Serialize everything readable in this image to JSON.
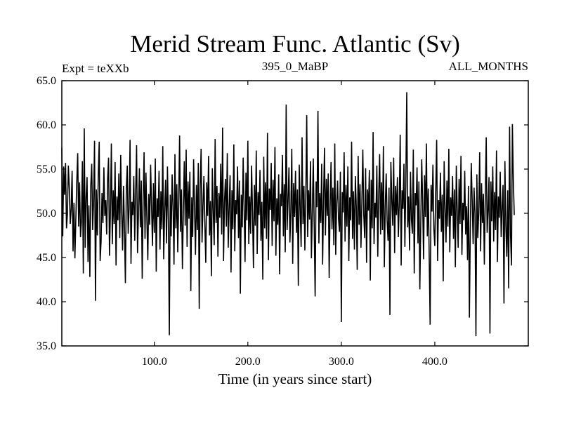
{
  "chart_data": {
    "type": "line",
    "title": "Merid Stream Func. Atlantic (Sv)",
    "left_note": "Expt = teXXb",
    "center_note": "395_0_MaBP",
    "right_note": "ALL_MONTHS",
    "xlabel": "Time (in years since start)",
    "ylabel": "",
    "xlim": [
      1,
      500
    ],
    "ylim": [
      35,
      65
    ],
    "x_ticks": [
      100,
      200,
      300,
      400
    ],
    "x_tick_labels": [
      "100.0",
      "200.0",
      "300.0",
      "400.0"
    ],
    "y_ticks": [
      35,
      40,
      45,
      50,
      55,
      60,
      65
    ],
    "y_tick_labels": [
      "35.0",
      "40.0",
      "45.0",
      "50.0",
      "55.0",
      "60.0",
      "65.0"
    ],
    "grid": false,
    "line_color": "#000000",
    "series": [
      {
        "x_start": 1,
        "x_step": 1,
        "values": [
          57.4,
          47.4,
          55.3,
          52.1,
          55.7,
          48.3,
          49.9,
          55.4,
          52.9,
          48.8,
          50.5,
          54.8,
          45.7,
          51.2,
          44.9,
          49.3,
          53.6,
          56.8,
          48.5,
          53.5,
          47.3,
          49.1,
          55.9,
          43.2,
          59.6,
          46.1,
          51.8,
          54.1,
          44.5,
          50.9,
          42.8,
          53.2,
          55.6,
          48.1,
          51.4,
          58.2,
          40.1,
          52.7,
          47.5,
          54.3,
          58.1,
          44.6,
          46.8,
          52.3,
          48.9,
          55.2,
          49.7,
          51.5,
          47.6,
          53.9,
          56.3,
          45.2,
          50.2,
          57.9,
          46.5,
          52.6,
          48.8,
          55.8,
          44.1,
          51.9,
          49.2,
          54.5,
          47.2,
          56.6,
          50.3,
          45.8,
          53.1,
          48.6,
          42.1,
          52.8,
          55.4,
          47.7,
          50.6,
          58.3,
          44.3,
          51.3,
          49.8,
          54.2,
          46.9,
          52.4,
          57.7,
          45.5,
          50.1,
          55.1,
          48.4,
          53.7,
          42.6,
          51.6,
          56.9,
          47.1,
          54.6,
          49.3,
          44.7,
          52.2,
          48.7,
          55.5,
          50.7,
          46.3,
          53.4,
          47.8,
          56.2,
          43.4,
          51.7,
          49.6,
          54.8,
          45.9,
          52.5,
          48.2,
          57.6,
          44.8,
          50.4,
          53.8,
          46.6,
          55.3,
          49.1,
          36.2,
          52.1,
          47.4,
          54.4,
          50.8,
          44.2,
          56.7,
          48.3,
          53.3,
          45.6,
          51.1,
          58.8,
          47.9,
          52.7,
          43.7,
          50.3,
          55.9,
          48.6,
          57.2,
          46.2,
          53.6,
          49.4,
          54.7,
          41.2,
          51.8,
          47.3,
          56.1,
          50.5,
          45.3,
          53.2,
          48.1,
          55.7,
          39.2,
          52.9,
          57.3,
          46.7,
          50.9,
          54.2,
          48.8,
          44.4,
          53.5,
          49.7,
          56.5,
          47.5,
          51.4,
          42.9,
          55.1,
          50.2,
          46.4,
          58.4,
          48.9,
          53.1,
          45.1,
          52.3,
          49.5,
          55.6,
          47.6,
          59.7,
          44.6,
          51.2,
          53.9,
          48.5,
          56.8,
          46.1,
          50.7,
          54.3,
          43.3,
          52.6,
          48.2,
          57.8,
          45.7,
          51.5,
          49.9,
          55.3,
          47.2,
          53.7,
          40.9,
          52.1,
          48.4,
          56.3,
          50.6,
          44.5,
          54.6,
          49.2,
          58.2,
          46.5,
          51.9,
          47.7,
          55.4,
          50.1,
          43.8,
          53.2,
          48.6,
          57.1,
          45.4,
          52.4,
          49.8,
          54.9,
          46.9,
          51.3,
          42.5,
          56.4,
          48.3,
          53.5,
          47.1,
          59.1,
          44.7,
          52.8,
          50.4,
          55.7,
          46.3,
          53.8,
          49.1,
          57.5,
          45.2,
          51.7,
          48.7,
          54.4,
          43.1,
          52.2,
          50.8,
          56.6,
          47.4,
          53.3,
          45.6,
          62.3,
          48.1,
          51.5,
          55.2,
          46.7,
          50.3,
          57.3,
          44.3,
          53.4,
          49.6,
          54.8,
          47.8,
          52.7,
          41.8,
          55.5,
          50.5,
          46.2,
          58.6,
          48.8,
          53.1,
          45.8,
          51.9,
          61.1,
          47.3,
          52.6,
          49.3,
          55.9,
          44.9,
          50.2,
          56.2,
          48.4,
          40.6,
          53.6,
          50.7,
          61.6,
          46.6,
          52.3,
          48.9,
          55.6,
          44.2,
          51.6,
          57.4,
          47.5,
          53.9,
          49.7,
          54.5,
          42.7,
          50.6,
          55.8,
          48.2,
          52.9,
          46.4,
          57.9,
          45.3,
          51.1,
          53.7,
          49.4,
          47.9,
          54.7,
          37.7,
          52.4,
          50.1,
          56.9,
          46.8,
          53.2,
          48.5,
          55.3,
          44.6,
          51.8,
          49.2,
          58.1,
          47.1,
          52.5,
          45.9,
          54.2,
          50.8,
          43.6,
          56.5,
          48.7,
          53.3,
          46.1,
          51.4,
          57.2,
          49.9,
          47.2,
          55.1,
          44.4,
          52.7,
          50.3,
          54.9,
          42.4,
          53.8,
          48.3,
          59.2,
          46.5,
          51.2,
          49.5,
          55.4,
          45.1,
          52.1,
          56.7,
          47.6,
          53.5,
          48.1,
          57.6,
          43.9,
          50.7,
          54.5,
          49.1,
          46.9,
          52.9,
          38.5,
          55.8,
          51.6,
          48.6,
          56.3,
          45.5,
          53.1,
          49.8,
          54.1,
          47.3,
          51.3,
          58.9,
          44.1,
          52.6,
          50.5,
          55.6,
          46.2,
          53.4,
          63.7,
          48.4,
          51.9,
          45.8,
          54.7,
          49.3,
          47.7,
          57.2,
          43.2,
          52.3,
          50.9,
          55.2,
          46.6,
          53.6,
          41.4,
          48.9,
          56.1,
          51.1,
          44.8,
          54.3,
          49.6,
          57.9,
          47.4,
          52.8,
          45.2,
          37.4,
          53.2,
          50.2,
          55.5,
          48.2,
          46.3,
          52.5,
          58.3,
          44.6,
          51.5,
          49.4,
          54.6,
          47.9,
          52.1,
          42.3,
          55.9,
          50.6,
          46.7,
          53.7,
          48.5,
          57.3,
          45.6,
          51.8,
          49.7,
          54.2,
          47.1,
          52.7,
          43.9,
          55.4,
          50.3,
          46.1,
          53.9,
          48.8,
          56.5,
          45.3,
          51.2,
          49.2,
          54.8,
          47.6,
          50.8,
          44.7,
          53.1,
          38.2,
          48.3,
          55.7,
          51.4,
          46.5,
          52.9,
          49.9,
          36.1,
          54.4,
          47.2,
          50.1,
          56.9,
          45.7,
          53.4,
          48.9,
          52.2,
          44.2,
          51.6,
          58.6,
          47.8,
          50.4,
          54.1,
          36.4,
          53.6,
          49.1,
          55.3,
          46.8,
          52.4,
          48.1,
          57.1,
          44.5,
          51.9,
          49.5,
          54.7,
          47.3,
          50.7,
          53.2,
          39.8,
          55.9,
          48.6,
          45.1,
          52.6,
          41.5,
          59.8,
          47.5,
          44.1,
          60.1,
          53.8,
          49.8
        ]
      }
    ]
  }
}
